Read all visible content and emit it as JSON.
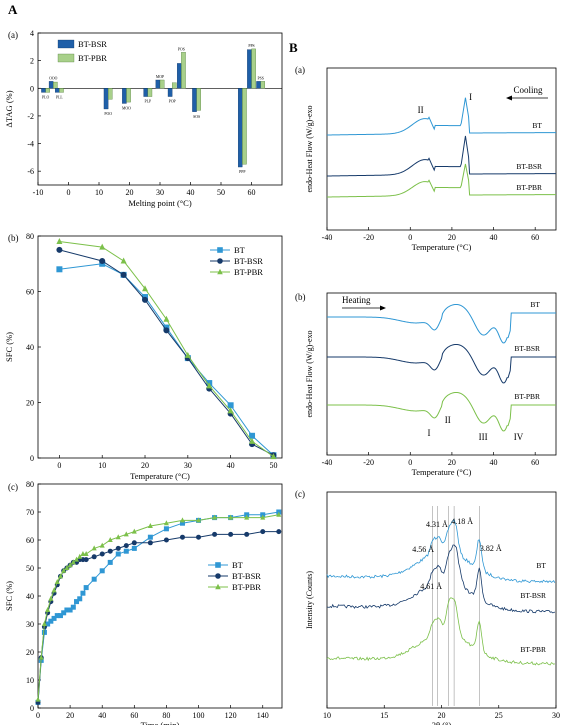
{
  "panel_labels": {
    "A": "A",
    "B": "B"
  },
  "colors": {
    "bsr_bar": "#1f5fa8",
    "pbr_bar": "#a8d08a",
    "bt": "#2f97d4",
    "bt_bsr": "#163a6a",
    "bt_pbr": "#7cc04a"
  },
  "chart_data": [
    {
      "id": "A_a",
      "panel": "(a)",
      "type": "bar",
      "xlabel": "Melting point (°C)",
      "ylabel": "ΔTAG (%)",
      "xlim": [
        -10,
        70
      ],
      "ylim": [
        -7,
        4
      ],
      "xticks": [
        "-10",
        "0",
        "10",
        "20",
        "30",
        "40",
        "50",
        "60"
      ],
      "yticks": [
        "-6",
        "-4",
        "-2",
        "0",
        "2",
        "4"
      ],
      "legend": [
        "BT-BSR",
        "BT-PBR"
      ],
      "bars": [
        {
          "label": "OOO",
          "x": -5,
          "bsr": 0.5,
          "pbr": 0.45
        },
        {
          "label": "PLO",
          "x": -7.5,
          "bsr": -0.3,
          "pbr": -0.3
        },
        {
          "label": "PLL",
          "x": -3,
          "bsr": -0.3,
          "pbr": -0.3
        },
        {
          "label": "POO",
          "x": 13,
          "bsr": -1.5,
          "pbr": -0.8
        },
        {
          "label": "MOO",
          "x": 19,
          "bsr": -1.1,
          "pbr": -1.0
        },
        {
          "label": "PLP",
          "x": 26,
          "bsr": -0.6,
          "pbr": -0.6
        },
        {
          "label": "MOP",
          "x": 30,
          "bsr": 0.6,
          "pbr": 0.6
        },
        {
          "label": "POP",
          "x": 34,
          "bsr": -0.6,
          "pbr": 0.4
        },
        {
          "label": "POS",
          "x": 37,
          "bsr": 1.8,
          "pbr": 2.6
        },
        {
          "label": "SOS",
          "x": 42,
          "bsr": -1.7,
          "pbr": -1.6
        },
        {
          "label": "PPP",
          "x": 57,
          "bsr": -5.7,
          "pbr": -5.5
        },
        {
          "label": "PPS",
          "x": 60,
          "bsr": 2.8,
          "pbr": 2.85
        },
        {
          "label": "PSS",
          "x": 63,
          "bsr": 0.5,
          "pbr": 0.5
        }
      ]
    },
    {
      "id": "A_b",
      "panel": "(b)",
      "type": "line",
      "xlabel": "Temperature (°C)",
      "ylabel": "SFC (%)",
      "xlim": [
        -5,
        52
      ],
      "ylim": [
        0,
        80
      ],
      "xticks": [
        "0",
        "10",
        "20",
        "30",
        "40",
        "50"
      ],
      "yticks": [
        "0",
        "20",
        "40",
        "60",
        "80"
      ],
      "x": [
        0,
        10,
        15,
        20,
        25,
        30,
        35,
        40,
        45,
        50
      ],
      "series": [
        {
          "name": "BT",
          "values": [
            68,
            70,
            66,
            58,
            47,
            36,
            27,
            19,
            8,
            1
          ]
        },
        {
          "name": "BT-BSR",
          "values": [
            75,
            71,
            66,
            57,
            46,
            36,
            25,
            16,
            5,
            1
          ]
        },
        {
          "name": "BT-PBR",
          "values": [
            78,
            76,
            71,
            61,
            50,
            37,
            26,
            17,
            6,
            0.5
          ]
        }
      ]
    },
    {
      "id": "A_c",
      "panel": "(c)",
      "type": "line",
      "xlabel": "Time (min)",
      "ylabel": "SFC (%)",
      "xlim": [
        0,
        152
      ],
      "ylim": [
        0,
        80
      ],
      "xticks": [
        "0",
        "20",
        "40",
        "60",
        "80",
        "100",
        "120",
        "140"
      ],
      "yticks": [
        "0",
        "10",
        "20",
        "30",
        "40",
        "50",
        "60",
        "70",
        "80"
      ],
      "series": [
        {
          "name": "BT",
          "x": [
            0,
            2,
            4,
            6,
            8,
            10,
            12,
            14,
            16,
            18,
            20,
            22,
            24,
            26,
            28,
            30,
            35,
            40,
            45,
            50,
            55,
            60,
            70,
            80,
            90,
            100,
            110,
            120,
            130,
            140,
            150
          ],
          "values": [
            2,
            17,
            27,
            30,
            31,
            32,
            33,
            33,
            34,
            35,
            35,
            36,
            38,
            39,
            41,
            43,
            46,
            49,
            52,
            55,
            56,
            57,
            61,
            64,
            66,
            67,
            68,
            68,
            69,
            69,
            70
          ]
        },
        {
          "name": "BT-BSR",
          "x": [
            0,
            2,
            4,
            6,
            8,
            10,
            12,
            14,
            16,
            18,
            20,
            22,
            24,
            26,
            28,
            30,
            35,
            40,
            45,
            50,
            55,
            60,
            70,
            80,
            90,
            100,
            110,
            120,
            130,
            140,
            150
          ],
          "values": [
            2,
            18,
            29,
            34,
            38,
            41,
            44,
            47,
            49,
            50,
            51,
            52,
            52,
            53,
            53,
            53,
            54,
            55,
            56,
            57,
            58,
            59,
            59,
            60,
            61,
            61,
            62,
            62,
            62,
            63,
            63
          ]
        },
        {
          "name": "BT-PBR",
          "x": [
            0,
            2,
            4,
            6,
            8,
            10,
            12,
            14,
            16,
            18,
            20,
            22,
            24,
            26,
            28,
            30,
            35,
            40,
            45,
            50,
            55,
            60,
            70,
            80,
            90,
            100,
            110,
            120,
            130,
            140,
            150
          ],
          "values": [
            3,
            18,
            30,
            35,
            39,
            42,
            45,
            47,
            49,
            50,
            51,
            52,
            53,
            54,
            55,
            55,
            57,
            58,
            60,
            61,
            62,
            63,
            65,
            66,
            67,
            67,
            68,
            68,
            68,
            68,
            69
          ]
        }
      ]
    },
    {
      "id": "B_a",
      "panel": "(a)",
      "type": "line",
      "xlabel": "Temperature (°C)",
      "ylabel": "endo-Heat Flow (W/g)-exo",
      "xlim": [
        -40,
        70
      ],
      "xticks": [
        "-40",
        "-20",
        "0",
        "20",
        "40",
        "60"
      ],
      "arrow_label": "Cooling",
      "peaks": [
        "II",
        "I"
      ],
      "series_labels": [
        "BT",
        "BT-BSR",
        "BT-PBR"
      ]
    },
    {
      "id": "B_b",
      "panel": "(b)",
      "type": "line",
      "xlabel": "Temperature (°C)",
      "ylabel": "endo-Heat Flow (W/g)-exo",
      "xlim": [
        -40,
        70
      ],
      "xticks": [
        "-40",
        "-20",
        "0",
        "20",
        "40",
        "60"
      ],
      "arrow_label": "Heating",
      "peaks": [
        "I",
        "II",
        "III",
        "IV"
      ],
      "series_labels": [
        "BT",
        "BT-BSR",
        "BT-PBR"
      ]
    },
    {
      "id": "B_c",
      "panel": "(c)",
      "type": "line",
      "xlabel": "2θ (°)",
      "ylabel": "Intensity (Counts)",
      "xlim": [
        10,
        30
      ],
      "xticks": [
        "10",
        "15",
        "20",
        "25",
        "30"
      ],
      "annotations": [
        "4.31 Å",
        "4.18 Å",
        "4.56 Å",
        "3.82 Å",
        "4.61 Å"
      ],
      "series_labels": [
        "BT",
        "BT-BSR",
        "BT-PBR"
      ]
    }
  ]
}
